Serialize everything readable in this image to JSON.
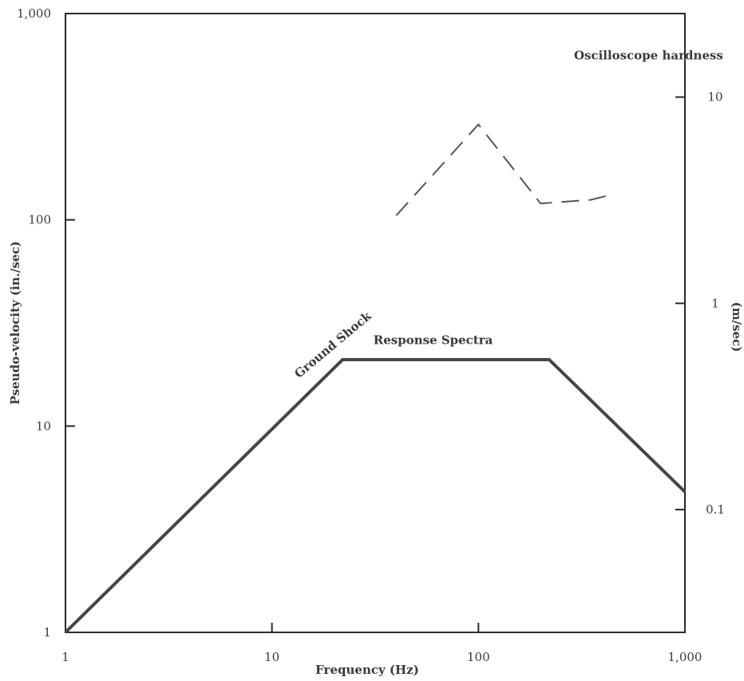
{
  "chart_data": {
    "type": "line",
    "title": "",
    "xlabel": "Frequency (Hz)",
    "ylabel": "Pseudo-velocity (in./sec)",
    "ylabel_right": "(m/sec)",
    "x_scale": "log",
    "y_scale": "log",
    "xlim": [
      1,
      1000
    ],
    "ylim": [
      1,
      1000
    ],
    "x_ticks": [
      1,
      10,
      100,
      1000
    ],
    "x_tick_labels": [
      "1",
      "10",
      "100",
      "1,000"
    ],
    "y_ticks": [
      1,
      10,
      100,
      1000
    ],
    "y_tick_labels": [
      "1",
      "10",
      "100",
      "1,000"
    ],
    "y_right_ticks": [
      0.1,
      1,
      10
    ],
    "y_right_tick_labels": [
      "0.1",
      "1",
      "10"
    ],
    "grid": false,
    "series": [
      {
        "name": "Response Spectra",
        "style": "solid",
        "color": "#454545",
        "x": [
          1,
          22,
          220,
          1000
        ],
        "y": [
          1,
          21,
          21,
          4.8
        ]
      },
      {
        "name": "Oscilloscope hardness",
        "style": "dashed",
        "color": "#555555",
        "x": [
          40,
          100,
          200,
          350,
          450
        ],
        "y": [
          105,
          290,
          120,
          125,
          133
        ]
      }
    ],
    "annotations": [
      {
        "text": "Ground Shock",
        "x": 13.5,
        "y": 17,
        "angle": -40
      },
      {
        "text": "Response Spectra",
        "x": 31,
        "y": 25
      },
      {
        "text": "Oscilloscope hardness",
        "x": 290,
        "y": 600
      }
    ]
  }
}
